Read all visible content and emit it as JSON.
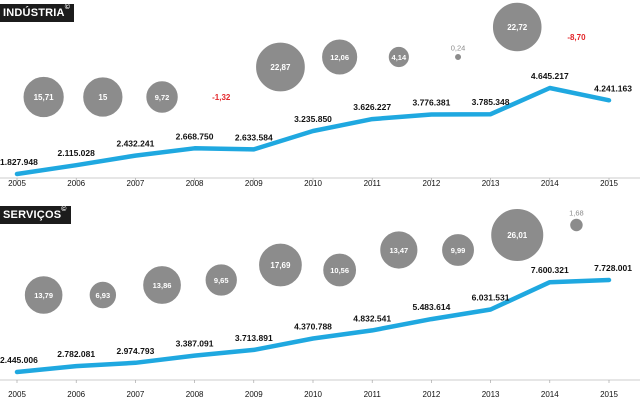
{
  "colors": {
    "line": "#1fa8e0",
    "bubble": "#8c8c8c",
    "bubble_stroke": "#ffffff",
    "negative": "#e3262a",
    "text": "#111111",
    "bubble_text": "#ffffff",
    "tab": "#1c1c1c",
    "gridline": "#9a9a9a"
  },
  "chart_data": [
    {
      "type": "line",
      "title": "INDÚSTRIA",
      "title_mark": "©",
      "x": [
        "2005",
        "2006",
        "2007",
        "2008",
        "2009",
        "2010",
        "2011",
        "2012",
        "2013",
        "2014",
        "2015"
      ],
      "values": [
        1827948,
        2115028,
        2432241,
        2668750,
        2633584,
        3235850,
        3626227,
        3776381,
        3785348,
        4645217,
        4241163
      ],
      "value_labels": [
        "1.827.948",
        "2.115.028",
        "2.432.241",
        "2.668.750",
        "2.633.584",
        "3.235.850",
        "3.626.227",
        "3.776.381",
        "3.785.348",
        "4.645.217",
        "4.241.163"
      ],
      "bubbles": [
        {
          "period": "2005–2006",
          "value": 15.71,
          "label": "15,71"
        },
        {
          "period": "2006–2007",
          "value": 15,
          "label": "15"
        },
        {
          "period": "2007–2008",
          "value": 9.72,
          "label": "9,72"
        },
        {
          "period": "2008–2009",
          "value": -1.32,
          "label": "-1,32"
        },
        {
          "period": "2009–2010",
          "value": 22.87,
          "label": "22,87"
        },
        {
          "period": "2010–2011",
          "value": 12.06,
          "label": "12,06"
        },
        {
          "period": "2011–2012",
          "value": 4.14,
          "label": "4,14"
        },
        {
          "period": "2012–2013",
          "value": 0.24,
          "label": "0,24"
        },
        {
          "period": "2013–2014",
          "value": 22.72,
          "label": "22,72"
        },
        {
          "period": "2014–2015",
          "value": -8.7,
          "label": "-8,70"
        }
      ]
    },
    {
      "type": "line",
      "title": "SERVIÇOS",
      "title_mark": "©",
      "x": [
        "2005",
        "2006",
        "2007",
        "2008",
        "2009",
        "2010",
        "2011",
        "2012",
        "2013",
        "2014",
        "2015"
      ],
      "values": [
        2445006,
        2782081,
        2974793,
        3387091,
        3713891,
        4370788,
        4832541,
        5483614,
        6031531,
        7600321,
        7728001
      ],
      "value_labels": [
        "2.445.006",
        "2.782.081",
        "2.974.793",
        "3.387.091",
        "3.713.891",
        "4.370.788",
        "4.832.541",
        "5.483.614",
        "6.031.531",
        "7.600.321",
        "7.728.001"
      ],
      "bubbles": [
        {
          "period": "2005–2006",
          "value": 13.79,
          "label": "13,79"
        },
        {
          "period": "2006–2007",
          "value": 6.93,
          "label": "6,93"
        },
        {
          "period": "2007–2008",
          "value": 13.86,
          "label": "13,86"
        },
        {
          "period": "2008–2009",
          "value": 9.65,
          "label": "9,65"
        },
        {
          "period": "2009–2010",
          "value": 17.69,
          "label": "17,69"
        },
        {
          "period": "2010–2011",
          "value": 10.56,
          "label": "10,56"
        },
        {
          "period": "2011–2012",
          "value": 13.47,
          "label": "13,47"
        },
        {
          "period": "2012–2013",
          "value": 9.99,
          "label": "9,99"
        },
        {
          "period": "2013–2014",
          "value": 26.01,
          "label": "26,01"
        },
        {
          "period": "2014–2015",
          "value": 1.68,
          "label": "1,68"
        }
      ]
    }
  ]
}
